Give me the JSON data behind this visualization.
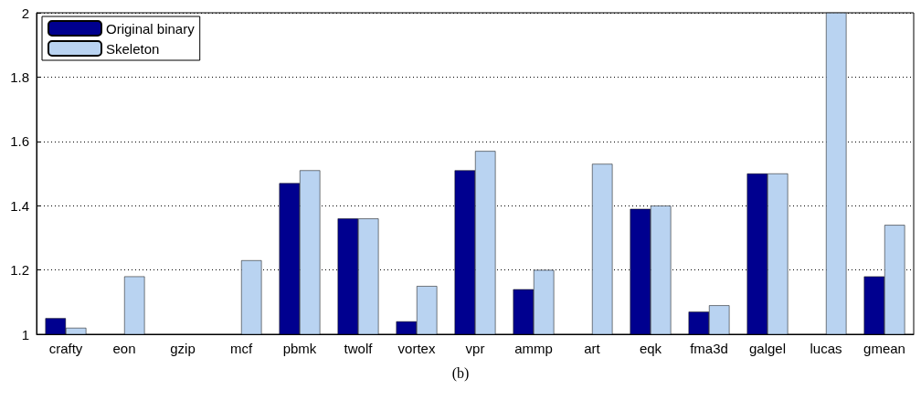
{
  "chart_data": {
    "type": "bar",
    "categories": [
      "crafty",
      "eon",
      "gzip",
      "mcf",
      "pbmk",
      "twolf",
      "vortex",
      "vpr",
      "ammp",
      "art",
      "eqk",
      "fma3d",
      "galgel",
      "lucas",
      "gmean"
    ],
    "series": [
      {
        "name": "Original binary",
        "color": "#00008f",
        "values": [
          1.05,
          1.0,
          1.0,
          1.0,
          1.47,
          1.36,
          1.04,
          1.51,
          1.14,
          1.0,
          1.39,
          1.07,
          1.5,
          1.0,
          1.18
        ]
      },
      {
        "name": "Skeleton",
        "color": "#b9d3f1",
        "values": [
          1.02,
          1.18,
          1.0,
          1.23,
          1.51,
          1.36,
          1.15,
          1.57,
          1.2,
          1.53,
          1.4,
          1.09,
          1.5,
          2.0,
          1.34
        ]
      }
    ],
    "ylim": [
      1,
      2
    ],
    "yticks": [
      1,
      1.2,
      1.4,
      1.6,
      1.8,
      2
    ],
    "grid": "y",
    "legend": "top left",
    "annotations": [
      "(b)"
    ]
  }
}
